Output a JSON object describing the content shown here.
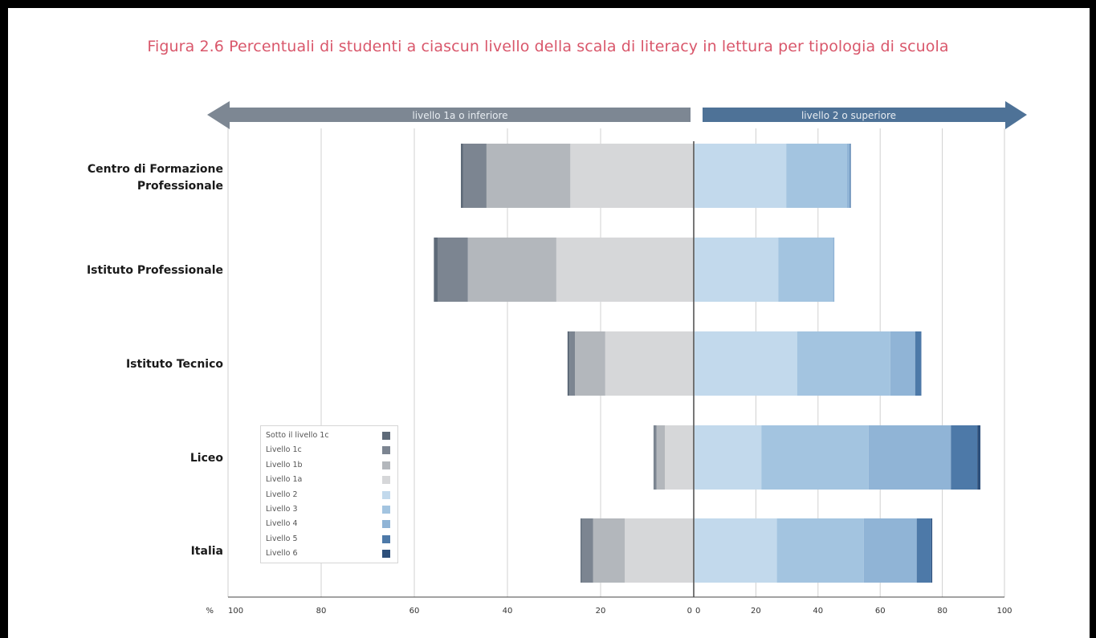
{
  "title": "Figura 2.6 Percentuali di studenti a ciascun livello della scala di literacy in lettura per tipologia di scuola",
  "banners": {
    "left": "livello 1a o inferiore",
    "right": "livello 2 o superiore"
  },
  "axis_unit": "%",
  "colors": {
    "Sotto il livello 1c": "#5e6a78",
    "Livello 1c": "#7c8591",
    "Livello 1b": "#b3b7bc",
    "Livello 1a": "#d6d7d9",
    "Livello 2": "#c2d9ec",
    "Livello 3": "#a3c4e0",
    "Livello 4": "#90b4d6",
    "Livello 5": "#4d79a8",
    "Livello 6": "#2d4f7a"
  },
  "chart_data": {
    "type": "bar",
    "orientation": "horizontal-diverging",
    "categories": [
      "Centro di Formazione Professionale",
      "Istituto Professionale",
      "Istituto Tecnico",
      "Liceo",
      "Italia"
    ],
    "left_ticks": [
      "100",
      "80",
      "60",
      "40",
      "20",
      "0"
    ],
    "right_ticks": [
      "0",
      "20",
      "40",
      "60",
      "80",
      "100"
    ],
    "xlim": [
      0,
      100
    ],
    "legend": [
      "Sotto il livello 1c",
      "Livello 1c",
      "Livello 1b",
      "Livello 1a",
      "Livello 2",
      "Livello 3",
      "Livello 4",
      "Livello 5",
      "Livello 6"
    ],
    "legend_position": "bottom-left",
    "series": [
      {
        "name": "Sotto il livello 1c",
        "side": "left",
        "values": [
          0.5,
          0.8,
          0.4,
          0.2,
          0.3
        ]
      },
      {
        "name": "Livello 1c",
        "side": "left",
        "values": [
          5,
          6.5,
          1.2,
          0.4,
          2.4
        ]
      },
      {
        "name": "Livello 1b",
        "side": "left",
        "values": [
          18,
          19,
          6.5,
          1.8,
          6.8
        ]
      },
      {
        "name": "Livello 1a",
        "side": "left",
        "values": [
          26.5,
          29.5,
          19,
          6.2,
          14.8
        ]
      },
      {
        "name": "Livello 2",
        "side": "right",
        "values": [
          29.5,
          27,
          33,
          21.5,
          26.5
        ]
      },
      {
        "name": "Livello 3",
        "side": "right",
        "values": [
          19.5,
          17.5,
          30,
          34.5,
          28
        ]
      },
      {
        "name": "Livello 4",
        "side": "right",
        "values": [
          1,
          0.5,
          8,
          26.5,
          17
        ]
      },
      {
        "name": "Livello 5",
        "side": "right",
        "values": [
          0.3,
          0,
          2,
          8.5,
          4.7
        ]
      },
      {
        "name": "Livello 6",
        "side": "right",
        "values": [
          0,
          0,
          0,
          1,
          0.3
        ]
      }
    ]
  }
}
